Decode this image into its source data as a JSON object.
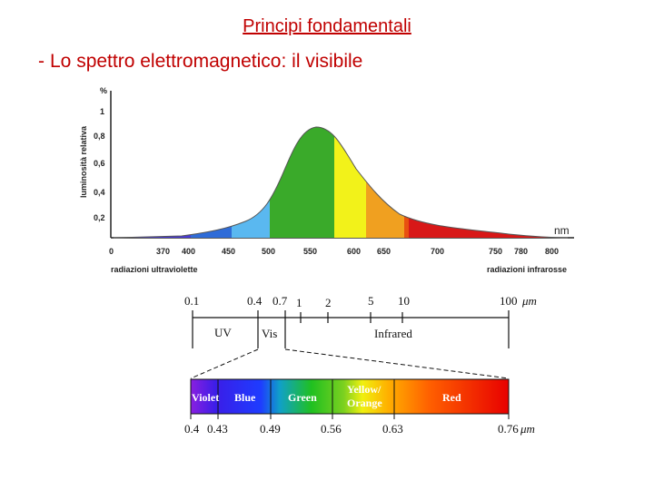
{
  "header": {
    "title": "Principi fondamentali",
    "subtitle": "Lo spettro elettromagnetico: il visibile"
  },
  "luminosity_chart": {
    "ylabel": "luminosità relativa",
    "yunit": "%",
    "yticks": [
      "1",
      "0,8",
      "0,6",
      "0,4",
      "0,2"
    ],
    "xticks": [
      "0",
      "370",
      "400",
      "450",
      "500",
      "550",
      "600",
      "650",
      "700",
      "750",
      "780",
      "800"
    ],
    "xunit": "nm",
    "left_label": "radiazioni ultraviolette",
    "right_label": "radiazioni infrarosse",
    "band_colors": [
      "#4a3bd6",
      "#2f6cd8",
      "#5ab8f0",
      "#3aaa2a",
      "#f2f21a",
      "#f0a020",
      "#e85010",
      "#d81818"
    ]
  },
  "spectrum_scale": {
    "ticks": [
      "0.1",
      "0.4",
      "0.7",
      "1",
      "2",
      "5",
      "10",
      "100"
    ],
    "unit": "μm",
    "regions": [
      "UV",
      "Vis",
      "Infrared"
    ]
  },
  "visible_band": {
    "labels": [
      "Violet",
      "Blue",
      "Green",
      "Yellow/",
      "Orange",
      "Red"
    ],
    "ticks": [
      "0.4",
      "0.43",
      "0.49",
      "0.56",
      "0.63",
      "0.76"
    ],
    "unit": "μm"
  }
}
